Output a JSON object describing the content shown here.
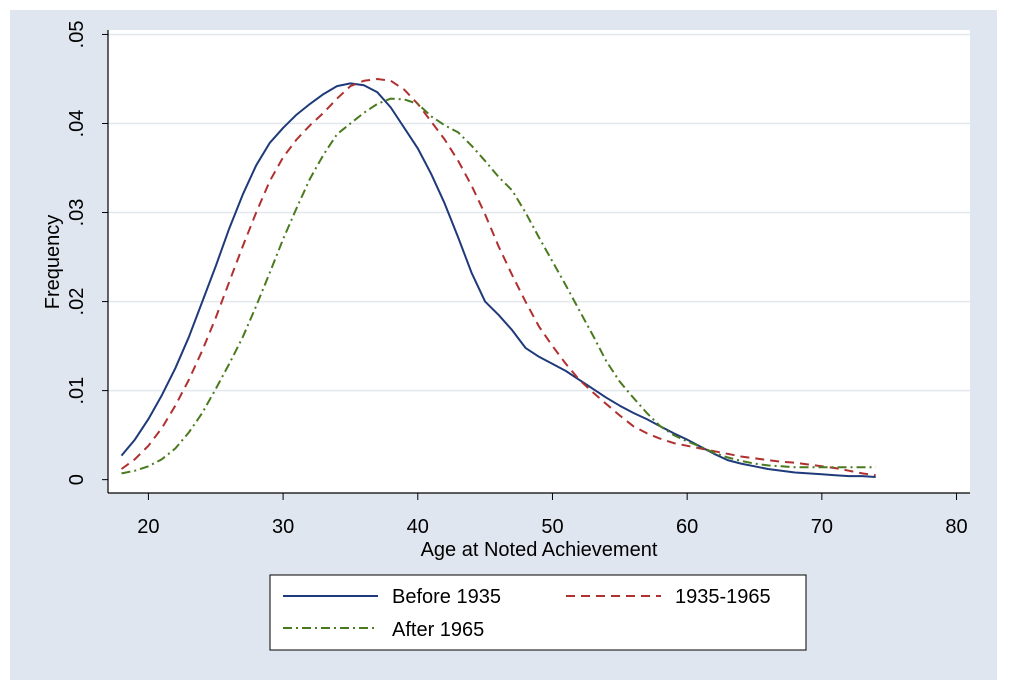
{
  "chart_data": {
    "type": "line",
    "title": "",
    "xlabel": "Age at Noted Achievement",
    "ylabel": "Frequency",
    "xlim": [
      17,
      81
    ],
    "ylim": [
      -0.0015,
      0.0505
    ],
    "xticks": [
      20,
      30,
      40,
      50,
      60,
      70,
      80
    ],
    "xtick_labels": [
      "20",
      "30",
      "40",
      "50",
      "60",
      "70",
      "80"
    ],
    "yticks": [
      0,
      0.01,
      0.02,
      0.03,
      0.04,
      0.05
    ],
    "ytick_labels": [
      "0",
      ".01",
      ".02",
      ".03",
      ".04",
      ".05"
    ],
    "grid": "horizontal",
    "legend_position": "bottom",
    "background_color": "#e0e6f0",
    "plot_background": "#ffffff",
    "series": [
      {
        "name": "Before 1935",
        "color": "#1f3a7a",
        "dash": "solid",
        "x": [
          18,
          19,
          20,
          21,
          22,
          23,
          24,
          25,
          26,
          27,
          28,
          29,
          30,
          31,
          32,
          33,
          34,
          35,
          36,
          37,
          38,
          39,
          40,
          41,
          42,
          43,
          44,
          45,
          46,
          47,
          48,
          49,
          50,
          51,
          52,
          53,
          54,
          55,
          56,
          57,
          58,
          59,
          60,
          61,
          62,
          63,
          64,
          65,
          66,
          67,
          68,
          69,
          70,
          71,
          72,
          73,
          74
        ],
        "y": [
          0.0027,
          0.0045,
          0.0068,
          0.0095,
          0.0125,
          0.016,
          0.02,
          0.024,
          0.0282,
          0.032,
          0.0353,
          0.0378,
          0.0395,
          0.041,
          0.0422,
          0.0433,
          0.0442,
          0.0445,
          0.0443,
          0.0435,
          0.0418,
          0.0395,
          0.0372,
          0.0343,
          0.031,
          0.0272,
          0.0232,
          0.02,
          0.0185,
          0.0168,
          0.0148,
          0.0138,
          0.013,
          0.0122,
          0.0112,
          0.0102,
          0.0092,
          0.0083,
          0.0075,
          0.0068,
          0.006,
          0.0052,
          0.0045,
          0.0037,
          0.0029,
          0.0022,
          0.0018,
          0.0015,
          0.0012,
          0.001,
          0.0008,
          0.0007,
          0.0006,
          0.0005,
          0.0004,
          0.0004,
          0.0003
        ]
      },
      {
        "name": "1935-1965",
        "color": "#b03030",
        "dash": "dashed",
        "x": [
          18,
          19,
          20,
          21,
          22,
          23,
          24,
          25,
          26,
          27,
          28,
          29,
          30,
          31,
          32,
          33,
          34,
          35,
          36,
          37,
          38,
          39,
          40,
          41,
          42,
          43,
          44,
          45,
          46,
          47,
          48,
          49,
          50,
          51,
          52,
          53,
          54,
          55,
          56,
          57,
          58,
          59,
          60,
          61,
          62,
          63,
          64,
          65,
          66,
          67,
          68,
          69,
          70,
          71,
          72,
          73,
          74
        ],
        "y": [
          0.0012,
          0.0023,
          0.0038,
          0.0058,
          0.0083,
          0.0112,
          0.0145,
          0.0182,
          0.0222,
          0.0262,
          0.03,
          0.0335,
          0.0362,
          0.0382,
          0.0398,
          0.0412,
          0.0428,
          0.0442,
          0.0448,
          0.045,
          0.0448,
          0.0438,
          0.0422,
          0.0402,
          0.0382,
          0.0358,
          0.033,
          0.0298,
          0.0262,
          0.023,
          0.02,
          0.0172,
          0.015,
          0.013,
          0.0112,
          0.0098,
          0.0085,
          0.0072,
          0.006,
          0.0052,
          0.0046,
          0.0041,
          0.0038,
          0.0035,
          0.0032,
          0.0029,
          0.0026,
          0.0024,
          0.0022,
          0.002,
          0.0019,
          0.0017,
          0.0015,
          0.0013,
          0.001,
          0.0007,
          0.0005
        ]
      },
      {
        "name": "After 1965",
        "color": "#4a7a1e",
        "dash": "dashdot",
        "x": [
          18,
          19,
          20,
          21,
          22,
          23,
          24,
          25,
          26,
          27,
          28,
          29,
          30,
          31,
          32,
          33,
          34,
          35,
          36,
          37,
          38,
          39,
          40,
          41,
          42,
          43,
          44,
          45,
          46,
          47,
          48,
          49,
          50,
          51,
          52,
          53,
          54,
          55,
          56,
          57,
          58,
          59,
          60,
          61,
          62,
          63,
          64,
          65,
          66,
          67,
          68,
          69,
          70,
          71,
          72,
          73,
          74
        ],
        "y": [
          0.0007,
          0.001,
          0.0015,
          0.0023,
          0.0035,
          0.0053,
          0.0075,
          0.0102,
          0.013,
          0.016,
          0.0195,
          0.0232,
          0.027,
          0.0305,
          0.0338,
          0.0365,
          0.0388,
          0.04,
          0.0412,
          0.0422,
          0.0428,
          0.0427,
          0.0422,
          0.0408,
          0.0398,
          0.039,
          0.0375,
          0.0358,
          0.034,
          0.0325,
          0.03,
          0.0272,
          0.0245,
          0.0218,
          0.019,
          0.0162,
          0.0133,
          0.011,
          0.0092,
          0.0075,
          0.006,
          0.005,
          0.0043,
          0.0037,
          0.003,
          0.0025,
          0.0021,
          0.0018,
          0.0016,
          0.0015,
          0.0014,
          0.0014,
          0.0014,
          0.0014,
          0.0014,
          0.0014,
          0.0014
        ]
      }
    ]
  }
}
